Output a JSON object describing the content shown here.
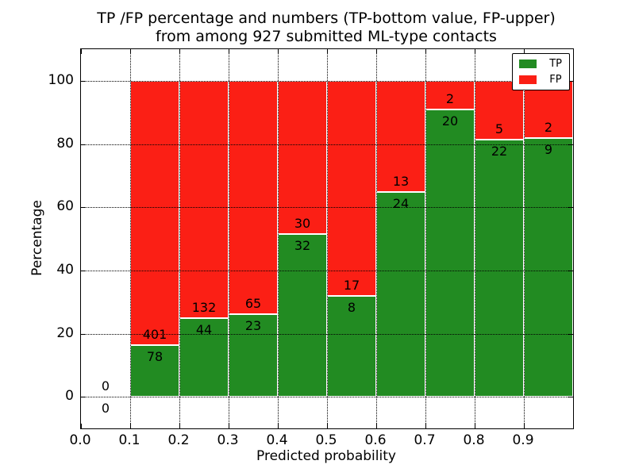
{
  "title": {
    "line1": "TP /FP percentage and numbers (TP-bottom value, FP-upper)",
    "line2": "from among 927 submitted ML-type contacts"
  },
  "chart_data": {
    "type": "bar",
    "stacked": true,
    "normalized_to": 100,
    "total_contacts": 927,
    "xlabel": "Predicted probability",
    "ylabel": "Percentage",
    "xlim": [
      0.0,
      1.0
    ],
    "ylim": [
      -10,
      110
    ],
    "x_tick_labels": [
      "0.0",
      "0.1",
      "0.2",
      "0.3",
      "0.4",
      "0.5",
      "0.6",
      "0.7",
      "0.8",
      "0.9"
    ],
    "y_tick_labels": [
      "0",
      "20",
      "40",
      "60",
      "80",
      "100"
    ],
    "grid": {
      "style": "dotted",
      "color": "#000000",
      "drawn_above_bars": true
    },
    "series": [
      {
        "name": "TP",
        "color": "#228b22"
      },
      {
        "name": "FP",
        "color": "#fb1f15"
      }
    ],
    "bins": [
      {
        "range": [
          0.0,
          0.1
        ],
        "tp": 0,
        "fp": 0,
        "tp_pct": 0.0
      },
      {
        "range": [
          0.1,
          0.2
        ],
        "tp": 78,
        "fp": 401,
        "tp_pct": 16.3
      },
      {
        "range": [
          0.2,
          0.3
        ],
        "tp": 44,
        "fp": 132,
        "tp_pct": 25.0
      },
      {
        "range": [
          0.3,
          0.4
        ],
        "tp": 23,
        "fp": 65,
        "tp_pct": 26.1
      },
      {
        "range": [
          0.4,
          0.5
        ],
        "tp": 32,
        "fp": 30,
        "tp_pct": 51.6
      },
      {
        "range": [
          0.5,
          0.6
        ],
        "tp": 8,
        "fp": 17,
        "tp_pct": 32.0
      },
      {
        "range": [
          0.6,
          0.7
        ],
        "tp": 24,
        "fp": 13,
        "tp_pct": 64.9
      },
      {
        "range": [
          0.7,
          0.8
        ],
        "tp": 20,
        "fp": 2,
        "tp_pct": 90.9
      },
      {
        "range": [
          0.8,
          0.9
        ],
        "tp": 22,
        "fp": 5,
        "tp_pct": 81.5
      },
      {
        "range": [
          0.9,
          1.0
        ],
        "tp": 9,
        "fp": 2,
        "tp_pct": 81.8
      }
    ],
    "legend": {
      "position": "upper right",
      "entries": [
        {
          "label": "TP",
          "color": "#228b22"
        },
        {
          "label": "FP",
          "color": "#fb1f15"
        }
      ]
    }
  }
}
